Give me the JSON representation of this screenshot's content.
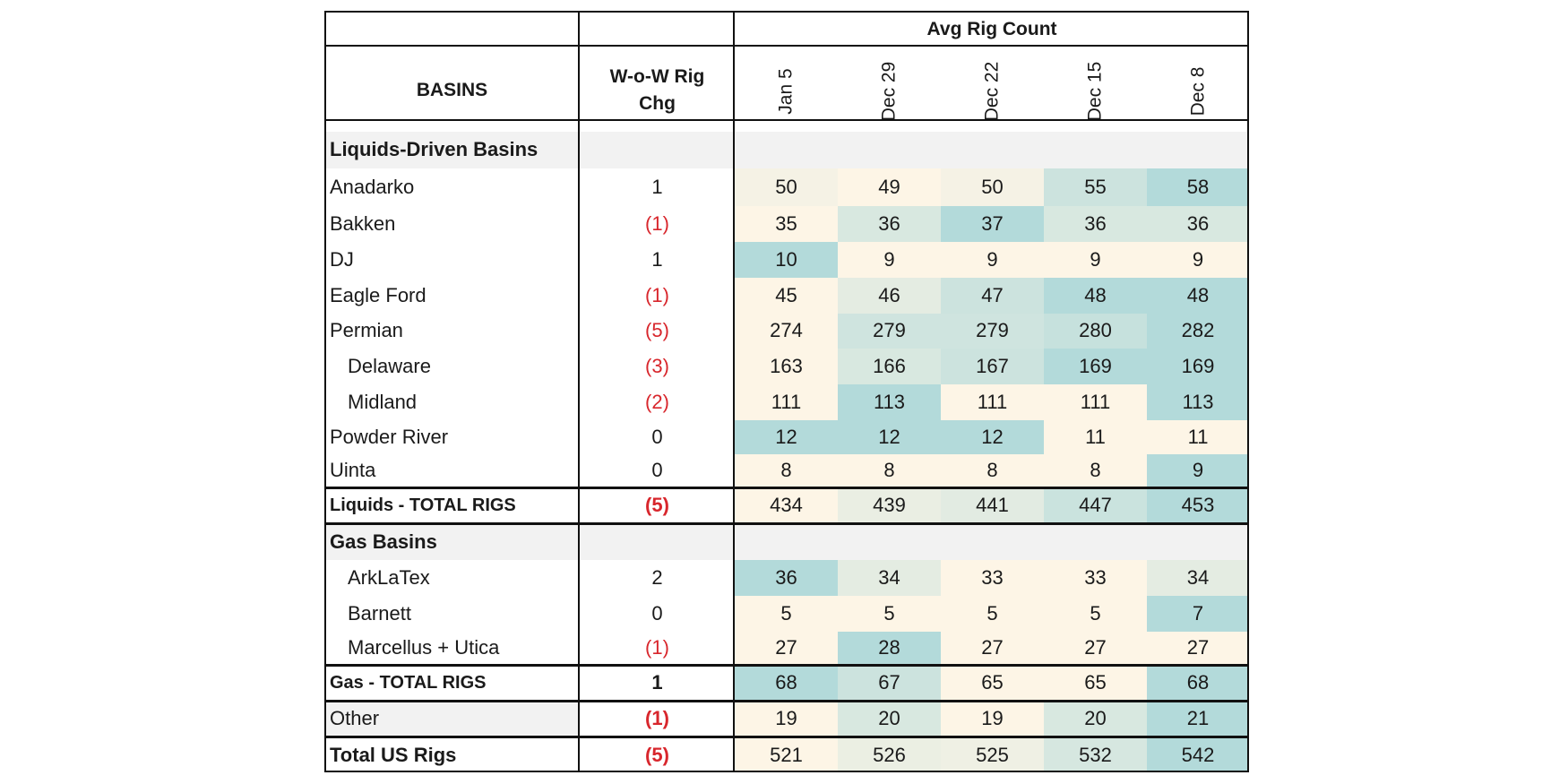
{
  "header": {
    "group_title": "Avg Rig Count",
    "basins_label": "BASINS",
    "change_label_line1": "W-o-W Rig",
    "change_label_line2": "Chg",
    "dates": [
      "Jan 5",
      "Dec 29",
      "Dec 22",
      "Dec 15",
      "Dec 8"
    ]
  },
  "colors": {
    "negative_text": "#d8262c",
    "heat_low": "#fdf5e6",
    "heat_high": "#b3dada",
    "section_background": "#f2f2f2"
  },
  "chart_data": {
    "type": "table",
    "columns": [
      "BASINS",
      "W-o-W Rig Chg",
      "Jan 5",
      "Dec 29",
      "Dec 22",
      "Dec 15",
      "Dec 8"
    ],
    "rows": [
      {
        "kind": "section",
        "label": "Liquids-Driven Basins"
      },
      {
        "kind": "row",
        "label": "Anadarko",
        "indent": false,
        "change": "1",
        "change_negative": false,
        "values": [
          50,
          49,
          50,
          55,
          58
        ]
      },
      {
        "kind": "row",
        "label": "Bakken",
        "indent": false,
        "change": "(1)",
        "change_negative": true,
        "values": [
          35,
          36,
          37,
          36,
          36
        ]
      },
      {
        "kind": "row",
        "label": "DJ",
        "indent": false,
        "change": "1",
        "change_negative": false,
        "values": [
          10,
          9,
          9,
          9,
          9
        ]
      },
      {
        "kind": "row",
        "label": "Eagle Ford",
        "indent": false,
        "change": "(1)",
        "change_negative": true,
        "values": [
          45,
          46,
          47,
          48,
          48
        ]
      },
      {
        "kind": "row",
        "label": "Permian",
        "indent": false,
        "change": "(5)",
        "change_negative": true,
        "values": [
          274,
          279,
          279,
          280,
          282
        ]
      },
      {
        "kind": "row",
        "label": "Delaware",
        "indent": true,
        "change": "(3)",
        "change_negative": true,
        "values": [
          163,
          166,
          167,
          169,
          169
        ]
      },
      {
        "kind": "row",
        "label": "Midland",
        "indent": true,
        "change": "(2)",
        "change_negative": true,
        "values": [
          111,
          113,
          111,
          111,
          113
        ]
      },
      {
        "kind": "row",
        "label": "Powder River",
        "indent": false,
        "change": "0",
        "change_negative": false,
        "values": [
          12,
          12,
          12,
          11,
          11
        ]
      },
      {
        "kind": "row",
        "label": "Uinta",
        "indent": false,
        "change": "0",
        "change_negative": false,
        "values": [
          8,
          8,
          8,
          8,
          9
        ]
      },
      {
        "kind": "total",
        "label": "Liquids - TOTAL RIGS",
        "change": "(5)",
        "change_negative": true,
        "values": [
          434,
          439,
          441,
          447,
          453
        ]
      },
      {
        "kind": "section",
        "label": "Gas Basins"
      },
      {
        "kind": "row",
        "label": "ArkLaTex",
        "indent": true,
        "change": "2",
        "change_negative": false,
        "values": [
          36,
          34,
          33,
          33,
          34
        ]
      },
      {
        "kind": "row",
        "label": "Barnett",
        "indent": true,
        "change": "0",
        "change_negative": false,
        "values": [
          5,
          5,
          5,
          5,
          7
        ]
      },
      {
        "kind": "row",
        "label": "Marcellus + Utica",
        "indent": true,
        "change": "(1)",
        "change_negative": true,
        "values": [
          27,
          28,
          27,
          27,
          27
        ]
      },
      {
        "kind": "total",
        "label": "Gas - TOTAL RIGS",
        "change": "1",
        "change_negative": false,
        "values": [
          68,
          67,
          65,
          65,
          68
        ]
      },
      {
        "kind": "other",
        "label": "Other",
        "change": "(1)",
        "change_negative": true,
        "values": [
          19,
          20,
          19,
          20,
          21
        ]
      },
      {
        "kind": "grand",
        "label": "Total US Rigs",
        "change": "(5)",
        "change_negative": true,
        "values": [
          521,
          526,
          525,
          532,
          542
        ]
      }
    ]
  }
}
